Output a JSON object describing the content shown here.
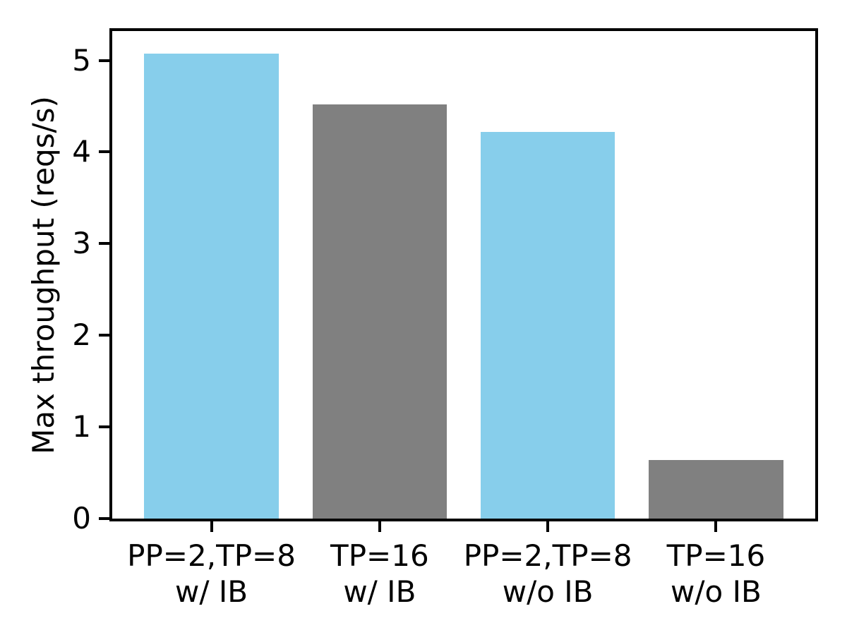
{
  "chart_data": {
    "type": "bar",
    "title": "",
    "xlabel": "",
    "ylabel": "Max throughput (reqs/s)",
    "categories": [
      {
        "line1": "PP=2,TP=8",
        "line2": "w/ IB"
      },
      {
        "line1": "TP=16",
        "line2": "w/ IB"
      },
      {
        "line1": "PP=2,TP=8",
        "line2": "w/o IB"
      },
      {
        "line1": "TP=16",
        "line2": "w/o IB"
      }
    ],
    "values": [
      5.07,
      4.52,
      4.22,
      0.64
    ],
    "bar_colors": [
      "#87CEEB",
      "#808080",
      "#87CEEB",
      "#808080"
    ],
    "yticks": [
      "0",
      "1",
      "2",
      "3",
      "4",
      "5"
    ],
    "ytick_values": [
      0,
      1,
      2,
      3,
      4,
      5
    ],
    "ylim": [
      0,
      5.32
    ],
    "xlim": [
      -0.59,
      3.59
    ],
    "bar_width_units": 0.8,
    "grid": false,
    "legend": false,
    "spine_color": "#000000",
    "text_color": "#000000",
    "background_color": "#ffffff"
  }
}
